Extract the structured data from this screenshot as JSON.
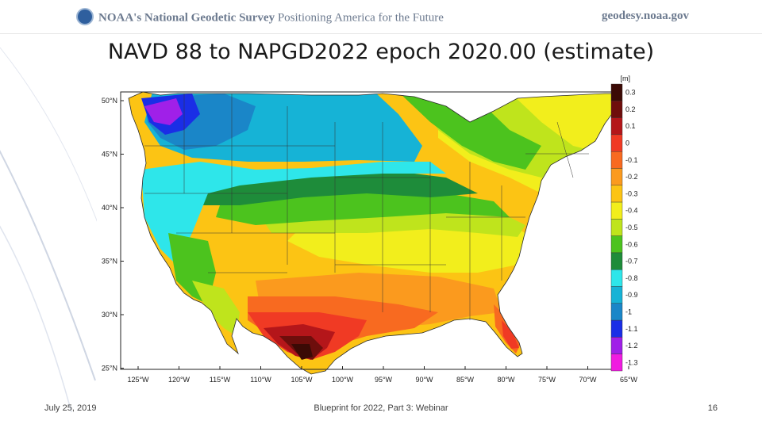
{
  "header": {
    "org": "NOAA's National Geodetic Survey",
    "tagline": "Positioning America for the Future",
    "site": "geodesy.noaa.gov"
  },
  "title": "NAVD 88 to NAPGD2022 epoch 2020.00 (estimate)",
  "map": {
    "unit_label": "[m]",
    "latitude_labels": [
      "50°N",
      "45°N",
      "40°N",
      "35°N",
      "30°N",
      "25°N"
    ],
    "longitude_labels": [
      "125°W",
      "120°W",
      "115°W",
      "110°W",
      "105°W",
      "100°W",
      "95°W",
      "90°W",
      "85°W",
      "80°W",
      "75°W",
      "70°W",
      "65°W"
    ],
    "colorbar": [
      {
        "label": "0.3",
        "color": "#3b0a05"
      },
      {
        "label": "0.2",
        "color": "#6e0e0c"
      },
      {
        "label": "0.1",
        "color": "#b4161a"
      },
      {
        "label": "0",
        "color": "#f03a24"
      },
      {
        "label": "-0.1",
        "color": "#f86a20"
      },
      {
        "label": "-0.2",
        "color": "#fb9a1e"
      },
      {
        "label": "-0.3",
        "color": "#fcc414"
      },
      {
        "label": "-0.4",
        "color": "#f2ee1c"
      },
      {
        "label": "-0.5",
        "color": "#bfe41c"
      },
      {
        "label": "-0.6",
        "color": "#4cc31e"
      },
      {
        "label": "-0.7",
        "color": "#1e8c3a"
      },
      {
        "label": "-0.8",
        "color": "#2ee6ea"
      },
      {
        "label": "-0.9",
        "color": "#16b3d6"
      },
      {
        "label": "-1",
        "color": "#1a86c8"
      },
      {
        "label": "-1.1",
        "color": "#1a2ee6"
      },
      {
        "label": "-1.2",
        "color": "#a020e8"
      },
      {
        "label": "-1.3",
        "color": "#f01ce0"
      }
    ]
  },
  "footer": {
    "date": "July 25, 2019",
    "center": "Blueprint for 2022, Part 3: Webinar",
    "page": "16"
  }
}
